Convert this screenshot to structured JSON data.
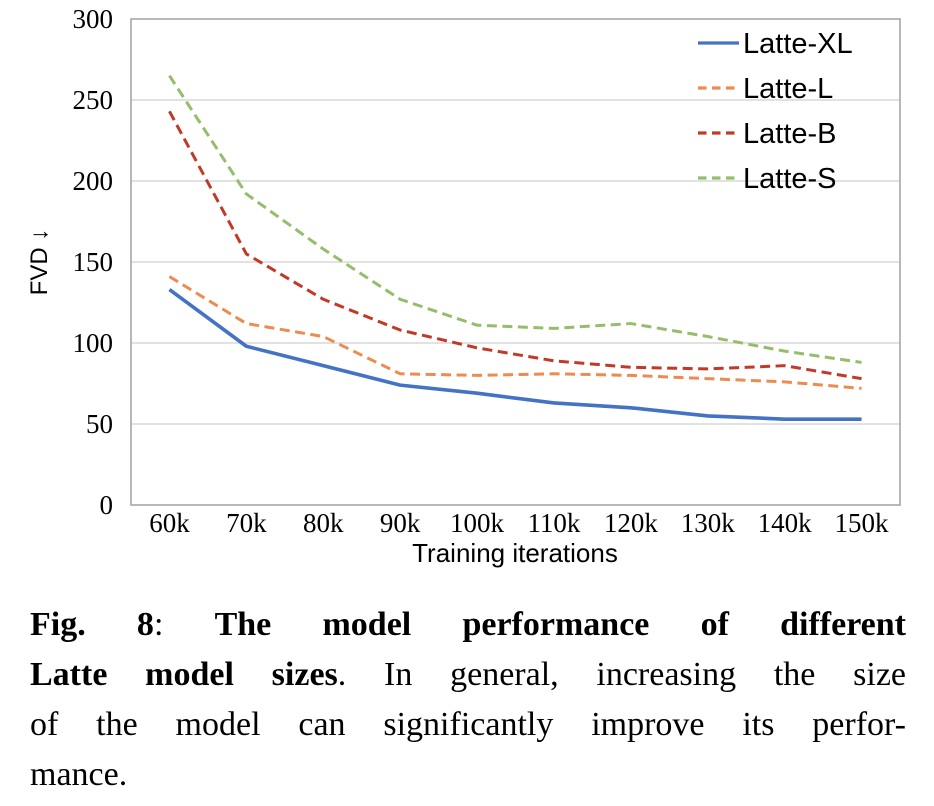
{
  "chart_data": {
    "type": "line",
    "title": "",
    "xlabel": "Training iterations",
    "ylabel": "FVD ↓",
    "categories": [
      "60k",
      "70k",
      "80k",
      "90k",
      "100k",
      "110k",
      "120k",
      "130k",
      "140k",
      "150k"
    ],
    "series": [
      {
        "name": "Latte-XL",
        "color": "#4472C4",
        "dash": "solid",
        "values": [
          133,
          98,
          86,
          74,
          69,
          63,
          60,
          55,
          53,
          53
        ]
      },
      {
        "name": "Latte-L",
        "color": "#ED8C50",
        "dash": "dashed",
        "values": [
          141,
          112,
          104,
          81,
          80,
          81,
          80,
          78,
          76,
          72
        ]
      },
      {
        "name": "Latte-B",
        "color": "#C13A28",
        "dash": "dashed",
        "values": [
          243,
          155,
          127,
          108,
          97,
          89,
          85,
          84,
          86,
          78
        ]
      },
      {
        "name": "Latte-S",
        "color": "#94BE6B",
        "dash": "dashed",
        "values": [
          265,
          192,
          158,
          127,
          111,
          109,
          112,
          104,
          95,
          88
        ]
      }
    ],
    "ylim": [
      0,
      300
    ],
    "ytick_step": 50,
    "grid": true,
    "legend_position": "top-right",
    "colors": {
      "frame": "#A6A6A6",
      "grid": "#D9D9D9",
      "text": "#000000"
    }
  },
  "caption": {
    "lines": [
      {
        "segments": [
          {
            "t": "Fig. 8",
            "b": true
          },
          {
            "t": ": ",
            "b": false
          },
          {
            "t": "The model performance of different",
            "b": true
          }
        ]
      },
      {
        "segments": [
          {
            "t": "Latte model sizes",
            "b": true
          },
          {
            "t": ". In general, increasing the size",
            "b": false
          }
        ]
      },
      {
        "segments": [
          {
            "t": "of the model can significantly improve its perfor-",
            "b": false
          }
        ]
      },
      {
        "segments": [
          {
            "t": "mance.",
            "b": false
          }
        ]
      }
    ]
  }
}
